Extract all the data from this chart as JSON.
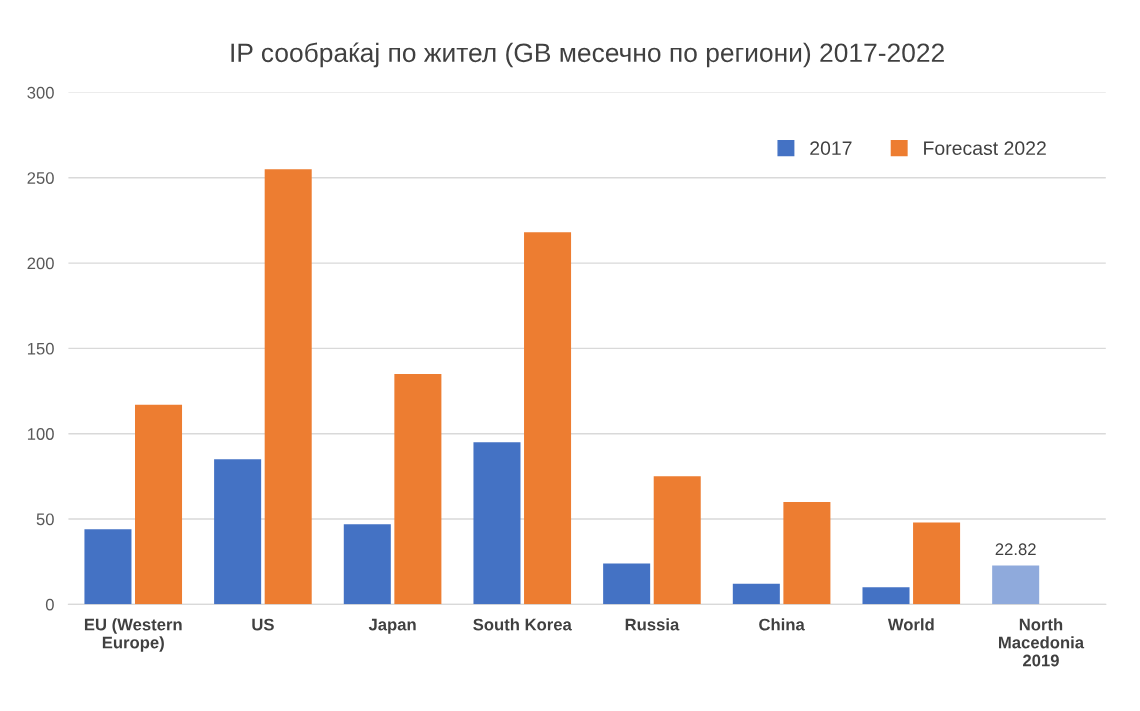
{
  "chart_data": {
    "type": "bar",
    "title": "IP сообраќај по жител (GB месечно по региони) 2017-2022",
    "categories": [
      "EU (Western\nEurope)",
      "US",
      "Japan",
      "South Korea",
      "Russia",
      "China",
      "World",
      "North\nMacedonia\n2019"
    ],
    "series": [
      {
        "name": "2017",
        "color": "#4472c4",
        "colors": [
          "#4472c4",
          "#4472c4",
          "#4472c4",
          "#4472c4",
          "#4472c4",
          "#4472c4",
          "#4472c4",
          "#8faadc"
        ],
        "values": [
          44,
          85,
          47,
          95,
          24,
          12,
          10,
          22.82
        ],
        "value_labels": [
          null,
          null,
          null,
          null,
          null,
          null,
          null,
          "22.82"
        ]
      },
      {
        "name": "Forecast 2022",
        "color": "#ed7d31",
        "values": [
          117,
          255,
          135,
          218,
          75,
          60,
          48,
          null
        ]
      }
    ],
    "ylim": [
      0,
      300
    ],
    "yticks": [
      0,
      50,
      100,
      150,
      200,
      250,
      300
    ],
    "grid": "y",
    "legend": "top right"
  }
}
